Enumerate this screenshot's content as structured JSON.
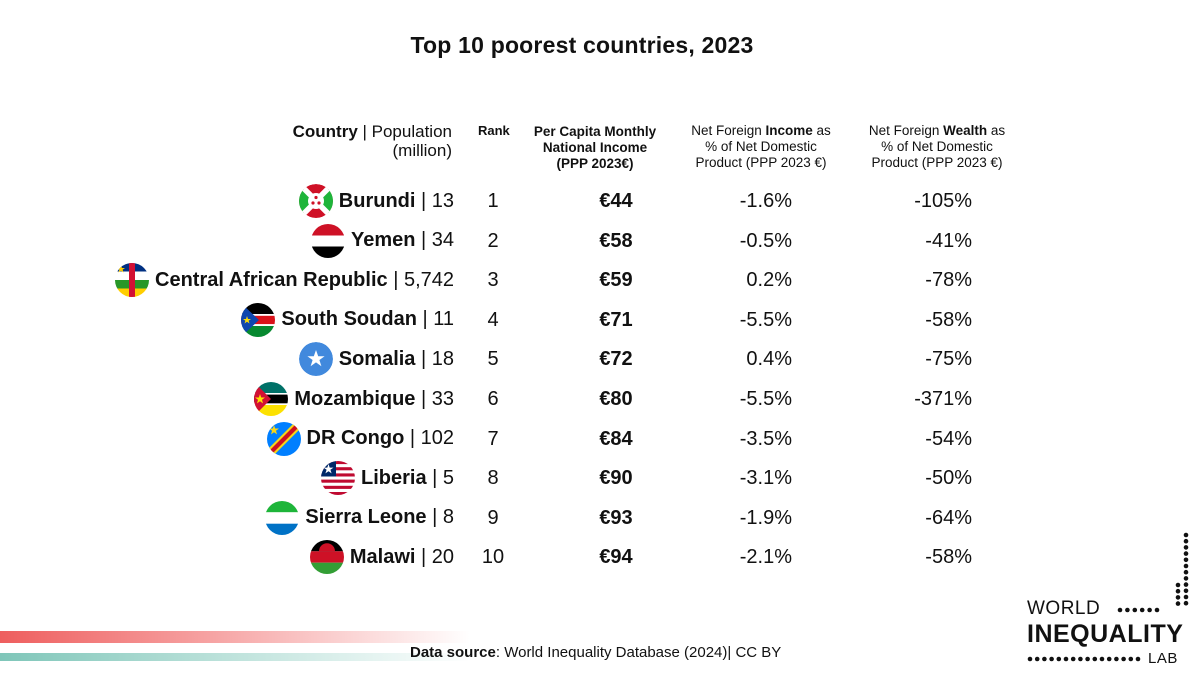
{
  "title": "Top 10 poorest countries, 2023",
  "headers": {
    "country_bold": "Country",
    "country_rest": " | Population",
    "country_unit": "(million)",
    "rank": "Rank",
    "per_capita_line1": "Per Capita Monthly",
    "per_capita_line2": "National Income",
    "per_capita_line3": "(PPP 2023€)",
    "nfi_pre": "Net Foreign ",
    "nfi_bold": "Income",
    "nfi_post": " as",
    "nfi_line2": "% of Net Domestic",
    "nfi_line3": "Product (PPP 2023 €)",
    "nfw_pre": "Net Foreign ",
    "nfw_bold": "Wealth",
    "nfw_post": " as",
    "nfw_line2": "% of Net Domestic",
    "nfw_line3": "Product (PPP 2023 €)"
  },
  "chart_data": {
    "type": "table",
    "title": "Top 10 poorest countries, 2023",
    "columns": [
      "Country | Population (million)",
      "Rank",
      "Per Capita Monthly National Income (PPP 2023€)",
      "Net Foreign Income as % of Net Domestic Product (PPP 2023 €)",
      "Net Foreign Wealth as % of Net Domestic Product (PPP 2023 €)"
    ],
    "rows": [
      {
        "country": "Burundi",
        "population": "13",
        "rank": "1",
        "income": "€44",
        "nfi": "-1.6%",
        "nfw": "-105%",
        "flag": "burundi-flag-icon"
      },
      {
        "country": "Yemen",
        "population": "34",
        "rank": "2",
        "income": "€58",
        "nfi": "-0.5%",
        "nfw": "-41%",
        "flag": "yemen-flag-icon"
      },
      {
        "country": "Central African Republic",
        "population": "5,742",
        "rank": "3",
        "income": "€59",
        "nfi": "0.2%",
        "nfw": "-78%",
        "flag": "car-flag-icon"
      },
      {
        "country": "South Soudan",
        "population": "11",
        "rank": "4",
        "income": "€71",
        "nfi": "-5.5%",
        "nfw": "-58%",
        "flag": "south-sudan-flag-icon"
      },
      {
        "country": "Somalia",
        "population": "18",
        "rank": "5",
        "income": "€72",
        "nfi": "0.4%",
        "nfw": "-75%",
        "flag": "somalia-flag-icon"
      },
      {
        "country": "Mozambique",
        "population": "33",
        "rank": "6",
        "income": "€80",
        "nfi": "-5.5%",
        "nfw": "-371%",
        "flag": "mozambique-flag-icon"
      },
      {
        "country": "DR Congo",
        "population": "102",
        "rank": "7",
        "income": "€84",
        "nfi": "-3.5%",
        "nfw": "-54%",
        "flag": "dr-congo-flag-icon"
      },
      {
        "country": "Liberia",
        "population": "5",
        "rank": "8",
        "income": "€90",
        "nfi": "-3.1%",
        "nfw": "-50%",
        "flag": "liberia-flag-icon"
      },
      {
        "country": "Sierra Leone",
        "population": "8",
        "rank": "9",
        "income": "€93",
        "nfi": "-1.9%",
        "nfw": "-64%",
        "flag": "sierra-leone-flag-icon"
      },
      {
        "country": "Malawi",
        "population": "20",
        "rank": "10",
        "income": "€94",
        "nfi": "-2.1%",
        "nfw": "-58%",
        "flag": "malawi-flag-icon"
      }
    ]
  },
  "source": {
    "label": "Data source",
    "text": ":  World Inequality Database (2024)| CC BY"
  },
  "logo": {
    "line1": "WORLD",
    "line2": "INEQUALITY",
    "line3": "LAB"
  },
  "colors": {
    "accent_red": "#ee5e5e",
    "accent_teal": "#7fc6b9"
  }
}
